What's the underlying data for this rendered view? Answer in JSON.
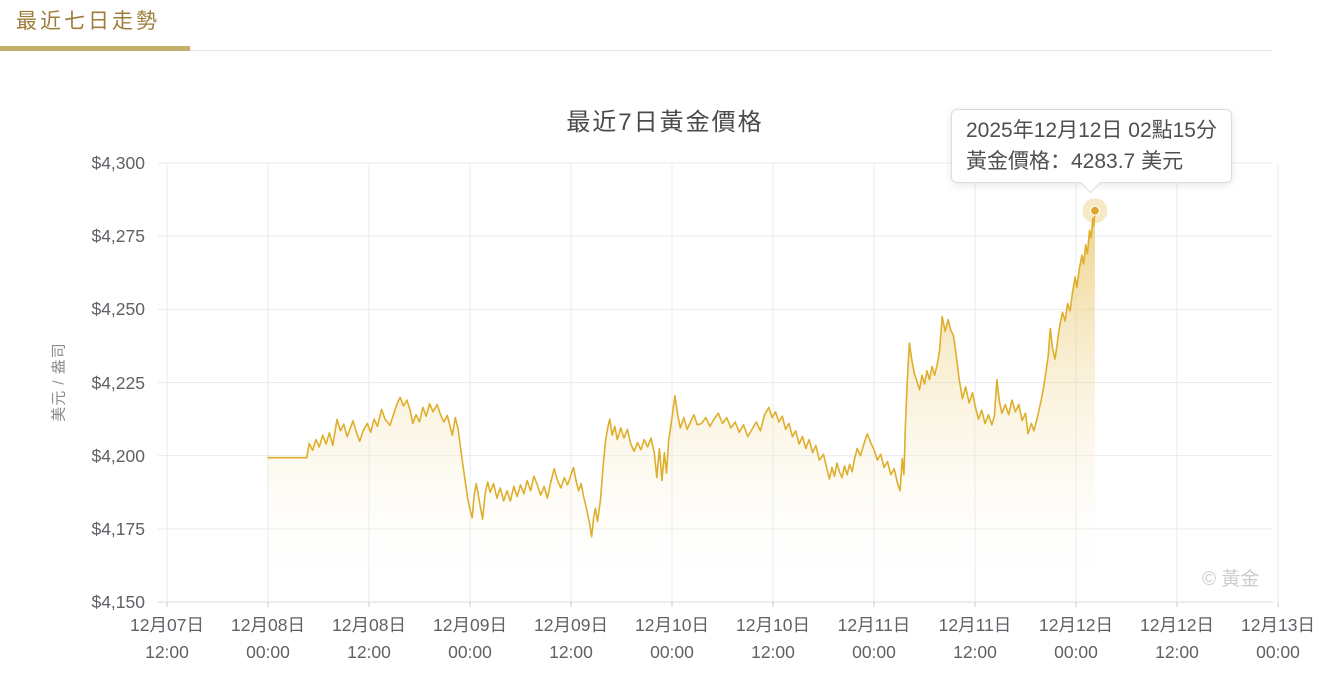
{
  "header": {
    "tab_label": "最近七日走勢"
  },
  "chart_data": {
    "type": "area",
    "title": "最近7日黃金價格",
    "y_axis": {
      "unit_label": "美元 / 盎司",
      "tick_labels": [
        "$4,300",
        "$4,275",
        "$4,250",
        "$4,225",
        "$4,200",
        "$4,175",
        "$4,150"
      ],
      "tick_values": [
        4300,
        4275,
        4250,
        4225,
        4200,
        4175,
        4150
      ],
      "range": [
        4150,
        4300
      ]
    },
    "x_axis": {
      "tick_interval_hours": 12,
      "ticks": [
        {
          "date": "12月07日",
          "time": "12:00"
        },
        {
          "date": "12月08日",
          "time": "00:00"
        },
        {
          "date": "12月08日",
          "time": "12:00"
        },
        {
          "date": "12月09日",
          "time": "00:00"
        },
        {
          "date": "12月09日",
          "time": "12:00"
        },
        {
          "date": "12月10日",
          "time": "00:00"
        },
        {
          "date": "12月10日",
          "time": "12:00"
        },
        {
          "date": "12月11日",
          "time": "00:00"
        },
        {
          "date": "12月11日",
          "time": "12:00"
        },
        {
          "date": "12月12日",
          "time": "00:00"
        },
        {
          "date": "12月12日",
          "time": "12:00"
        },
        {
          "date": "12月13日",
          "time": "00:00"
        }
      ]
    },
    "series": [
      {
        "name": "黃金價格",
        "points": [
          [
            12,
            4199.3
          ],
          [
            16.6,
            4199.3
          ],
          [
            16.9,
            4204.2
          ],
          [
            17.3,
            4201.8
          ],
          [
            17.7,
            4205.5
          ],
          [
            18.1,
            4203
          ],
          [
            18.5,
            4207
          ],
          [
            18.9,
            4204
          ],
          [
            19.3,
            4207.8
          ],
          [
            19.7,
            4203.5
          ],
          [
            20.2,
            4212.4
          ],
          [
            20.6,
            4208.5
          ],
          [
            21,
            4210.8
          ],
          [
            21.4,
            4206.4
          ],
          [
            22.1,
            4211.9
          ],
          [
            22.5,
            4208
          ],
          [
            22.9,
            4204.9
          ],
          [
            23.3,
            4208.5
          ],
          [
            23.8,
            4211
          ],
          [
            24.2,
            4208
          ],
          [
            24.6,
            4212.5
          ],
          [
            25,
            4210
          ],
          [
            25.5,
            4215.8
          ],
          [
            25.9,
            4212.5
          ],
          [
            26.5,
            4210.3
          ],
          [
            26.9,
            4214
          ],
          [
            27.3,
            4217.5
          ],
          [
            27.7,
            4219.9
          ],
          [
            28.1,
            4217
          ],
          [
            28.5,
            4219
          ],
          [
            28.9,
            4215.5
          ],
          [
            29.2,
            4211
          ],
          [
            29.6,
            4214
          ],
          [
            30,
            4211.5
          ],
          [
            30.4,
            4216.5
          ],
          [
            30.8,
            4213.5
          ],
          [
            31.2,
            4217.8
          ],
          [
            31.6,
            4215
          ],
          [
            32.1,
            4217.5
          ],
          [
            32.5,
            4214
          ],
          [
            32.9,
            4211.5
          ],
          [
            33.3,
            4213.8
          ],
          [
            33.9,
            4207
          ],
          [
            34.25,
            4213
          ],
          [
            34.6,
            4209
          ],
          [
            35,
            4200
          ],
          [
            35.4,
            4192
          ],
          [
            35.75,
            4185
          ],
          [
            36.05,
            4181
          ],
          [
            36.25,
            4178.8
          ],
          [
            36.5,
            4186.5
          ],
          [
            36.75,
            4190.5
          ],
          [
            37.1,
            4184.5
          ],
          [
            37.5,
            4178.3
          ],
          [
            37.8,
            4187
          ],
          [
            38.1,
            4191
          ],
          [
            38.4,
            4187.5
          ],
          [
            38.8,
            4190.5
          ],
          [
            39.2,
            4185.5
          ],
          [
            39.6,
            4189
          ],
          [
            40,
            4184.5
          ],
          [
            40.4,
            4188
          ],
          [
            40.8,
            4184.5
          ],
          [
            41.2,
            4189.5
          ],
          [
            41.6,
            4186
          ],
          [
            42,
            4190
          ],
          [
            42.4,
            4187
          ],
          [
            42.8,
            4191.5
          ],
          [
            43.2,
            4188
          ],
          [
            43.6,
            4193
          ],
          [
            44,
            4190
          ],
          [
            44.4,
            4186.5
          ],
          [
            44.8,
            4189.5
          ],
          [
            45.2,
            4185.5
          ],
          [
            45.6,
            4191
          ],
          [
            46,
            4195.5
          ],
          [
            46.4,
            4191.5
          ],
          [
            46.8,
            4189
          ],
          [
            47.2,
            4192.5
          ],
          [
            47.6,
            4190
          ],
          [
            48,
            4193.5
          ],
          [
            48.3,
            4196
          ],
          [
            48.6,
            4191.5
          ],
          [
            48.9,
            4188
          ],
          [
            49.2,
            4190.5
          ],
          [
            49.5,
            4186
          ],
          [
            49.8,
            4182.5
          ],
          [
            50.2,
            4177
          ],
          [
            50.45,
            4172.3
          ],
          [
            50.7,
            4179
          ],
          [
            50.9,
            4182
          ],
          [
            51.15,
            4177.5
          ],
          [
            51.5,
            4185
          ],
          [
            51.8,
            4196
          ],
          [
            52.1,
            4205
          ],
          [
            52.4,
            4210
          ],
          [
            52.6,
            4212.5
          ],
          [
            52.9,
            4207
          ],
          [
            53.2,
            4210
          ],
          [
            53.5,
            4205.5
          ],
          [
            53.9,
            4209.5
          ],
          [
            54.3,
            4206
          ],
          [
            54.7,
            4209
          ],
          [
            55.1,
            4204
          ],
          [
            55.5,
            4201.5
          ],
          [
            55.9,
            4204.5
          ],
          [
            56.3,
            4202
          ],
          [
            56.7,
            4205.5
          ],
          [
            57.1,
            4203
          ],
          [
            57.5,
            4206
          ],
          [
            57.9,
            4201
          ],
          [
            58.2,
            4192.5
          ],
          [
            58.5,
            4202.5
          ],
          [
            58.8,
            4191.5
          ],
          [
            59.1,
            4201
          ],
          [
            59.35,
            4194
          ],
          [
            59.6,
            4205
          ],
          [
            60,
            4213
          ],
          [
            60.35,
            4220.5
          ],
          [
            60.7,
            4213.5
          ],
          [
            61,
            4209.5
          ],
          [
            61.4,
            4213
          ],
          [
            61.8,
            4209
          ],
          [
            62.2,
            4211.5
          ],
          [
            62.6,
            4214
          ],
          [
            63,
            4210.5
          ],
          [
            63.5,
            4211
          ],
          [
            64,
            4213
          ],
          [
            64.5,
            4210
          ],
          [
            65,
            4212.5
          ],
          [
            65.5,
            4214.5
          ],
          [
            66,
            4211
          ],
          [
            66.5,
            4213
          ],
          [
            67,
            4209.5
          ],
          [
            67.5,
            4211.5
          ],
          [
            68,
            4208
          ],
          [
            68.5,
            4210.5
          ],
          [
            69,
            4206.5
          ],
          [
            69.5,
            4209
          ],
          [
            70,
            4211.5
          ],
          [
            70.5,
            4208.5
          ],
          [
            71,
            4214
          ],
          [
            71.5,
            4216.5
          ],
          [
            71.9,
            4213
          ],
          [
            72.3,
            4215
          ],
          [
            72.7,
            4211.5
          ],
          [
            73.1,
            4213.5
          ],
          [
            73.5,
            4209
          ],
          [
            73.9,
            4211
          ],
          [
            74.3,
            4206.5
          ],
          [
            74.7,
            4208.5
          ],
          [
            75.1,
            4204
          ],
          [
            75.5,
            4206.5
          ],
          [
            75.9,
            4202.5
          ],
          [
            76.3,
            4205.5
          ],
          [
            76.7,
            4201
          ],
          [
            77.1,
            4203.5
          ],
          [
            77.5,
            4198.5
          ],
          [
            78,
            4200.5
          ],
          [
            78.4,
            4195.5
          ],
          [
            78.7,
            4192
          ],
          [
            79,
            4196
          ],
          [
            79.3,
            4193
          ],
          [
            79.6,
            4197.5
          ],
          [
            79.9,
            4194.5
          ],
          [
            80.2,
            4192.5
          ],
          [
            80.5,
            4196.5
          ],
          [
            80.8,
            4193.5
          ],
          [
            81.1,
            4197
          ],
          [
            81.4,
            4194.5
          ],
          [
            81.7,
            4199
          ],
          [
            82,
            4202.5
          ],
          [
            82.4,
            4200
          ],
          [
            82.8,
            4204
          ],
          [
            83.2,
            4207.5
          ],
          [
            83.6,
            4204.5
          ],
          [
            84,
            4202
          ],
          [
            84.4,
            4198.5
          ],
          [
            84.8,
            4200.5
          ],
          [
            85.2,
            4196
          ],
          [
            85.6,
            4198
          ],
          [
            86,
            4193.5
          ],
          [
            86.4,
            4195.5
          ],
          [
            86.8,
            4190.5
          ],
          [
            87.1,
            4188
          ],
          [
            87.35,
            4199
          ],
          [
            87.55,
            4193.5
          ],
          [
            87.75,
            4212
          ],
          [
            87.95,
            4225
          ],
          [
            88.2,
            4238.5
          ],
          [
            88.5,
            4232.5
          ],
          [
            88.8,
            4228
          ],
          [
            89.1,
            4225.5
          ],
          [
            89.4,
            4222.5
          ],
          [
            89.7,
            4227.5
          ],
          [
            90,
            4224.5
          ],
          [
            90.3,
            4229
          ],
          [
            90.6,
            4226
          ],
          [
            90.9,
            4230.5
          ],
          [
            91.2,
            4227.5
          ],
          [
            91.5,
            4231
          ],
          [
            91.8,
            4236
          ],
          [
            92.1,
            4247.5
          ],
          [
            92.45,
            4242.5
          ],
          [
            92.8,
            4246.5
          ],
          [
            93.1,
            4243
          ],
          [
            93.45,
            4241
          ],
          [
            93.8,
            4233.5
          ],
          [
            94.1,
            4226.5
          ],
          [
            94.5,
            4219.5
          ],
          [
            94.9,
            4223.5
          ],
          [
            95.3,
            4218
          ],
          [
            95.7,
            4221.5
          ],
          [
            96.1,
            4216
          ],
          [
            96.4,
            4212.5
          ],
          [
            96.8,
            4215.5
          ],
          [
            97.2,
            4211
          ],
          [
            97.6,
            4214
          ],
          [
            98,
            4210.5
          ],
          [
            98.3,
            4213.5
          ],
          [
            98.6,
            4226
          ],
          [
            98.9,
            4218.5
          ],
          [
            99.2,
            4214.5
          ],
          [
            99.6,
            4217.5
          ],
          [
            100,
            4214
          ],
          [
            100.4,
            4219
          ],
          [
            100.8,
            4215
          ],
          [
            101.2,
            4217.5
          ],
          [
            101.6,
            4212
          ],
          [
            102,
            4214.5
          ],
          [
            102.3,
            4207.5
          ],
          [
            102.7,
            4211
          ],
          [
            103,
            4208.5
          ],
          [
            103.4,
            4213
          ],
          [
            103.8,
            4218
          ],
          [
            104.1,
            4222.5
          ],
          [
            104.4,
            4228
          ],
          [
            104.7,
            4234
          ],
          [
            104.95,
            4243.5
          ],
          [
            105.2,
            4237
          ],
          [
            105.5,
            4233
          ],
          [
            105.8,
            4239
          ],
          [
            106.1,
            4245
          ],
          [
            106.4,
            4249
          ],
          [
            106.7,
            4246
          ],
          [
            107,
            4252
          ],
          [
            107.3,
            4249.5
          ],
          [
            107.6,
            4256
          ],
          [
            107.9,
            4261
          ],
          [
            108.1,
            4257.5
          ],
          [
            108.4,
            4264
          ],
          [
            108.7,
            4268.5
          ],
          [
            108.9,
            4265.5
          ],
          [
            109.15,
            4272
          ],
          [
            109.35,
            4269
          ],
          [
            109.6,
            4277
          ],
          [
            109.8,
            4274.5
          ],
          [
            110,
            4281
          ],
          [
            110.1,
            4278.5
          ],
          [
            110.25,
            4283.7
          ]
        ]
      }
    ],
    "end_point": {
      "value": 4283.7,
      "hours": 110.25
    },
    "tooltip": {
      "line1": "2025年12月12日 02點15分",
      "line2": "黃金價格：4283.7 美元"
    },
    "watermark": "© 黃金",
    "legend_position": "none",
    "grid": true,
    "colors": {
      "line": "#DFAE2B",
      "area_top": "rgba(226,180,58,0.75)",
      "area_bottom": "rgba(255,255,255,0)",
      "grid_line": "#E9EBEF",
      "axis_line": "#DADDE2",
      "tick_mark": "#C4C8CE",
      "tick_text": "#5E6166",
      "title_text": "#4A4A4A",
      "tab_text": "#9C7D3B",
      "tab_underline": "#C4AE6C",
      "marker_dot": "#DFA62A",
      "marker_halo": "rgba(223,175,45,0.28)",
      "tooltip_text": "#4F4F4F",
      "tooltip_border": "#DCDCDC",
      "watermark_text": "#CBCDD1"
    }
  }
}
